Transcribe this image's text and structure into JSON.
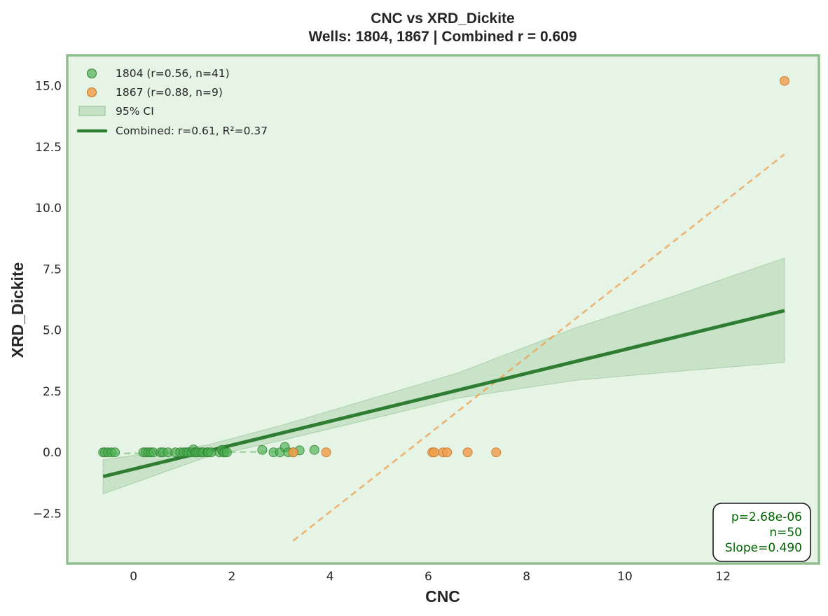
{
  "chart_data": {
    "type": "scatter",
    "title": "CNC vs XRD_Dickite",
    "subtitle": "Wells: 1804, 1867 | Combined r = 0.609",
    "xlabel": "CNC",
    "ylabel": "XRD_Dickite",
    "xlim": [
      -1.35,
      13.95
    ],
    "ylim": [
      -4.55,
      16.25
    ],
    "x_ticks": [
      0,
      2,
      4,
      6,
      8,
      10,
      12
    ],
    "y_ticks": [
      -2.5,
      0.0,
      2.5,
      5.0,
      7.5,
      10.0,
      12.5,
      15.0
    ],
    "x_tick_labels": [
      "0",
      "2",
      "4",
      "6",
      "8",
      "10",
      "12"
    ],
    "y_tick_labels": [
      "−2.5",
      "0.0",
      "2.5",
      "5.0",
      "7.5",
      "10.0",
      "12.5",
      "15.0"
    ],
    "grid": false,
    "legend_position": "upper-left",
    "colors": {
      "background": "#e6f4e6",
      "frame": "#8fbf8f",
      "series_1804": "#4caf50",
      "series_1804_edge": "#2e7d32",
      "series_1867": "#f0a050",
      "series_1867_edge": "#c07020",
      "combined_line": "#2e7d32",
      "ci_fill": "#a5cfa5",
      "stats_text": "#006400"
    },
    "series": [
      {
        "name": "1804",
        "legend": "1804 (r=0.56, n=41)",
        "marker": "circle",
        "points": [
          [
            -0.62,
            0
          ],
          [
            -0.58,
            0
          ],
          [
            -0.52,
            0
          ],
          [
            -0.45,
            0
          ],
          [
            -0.38,
            0
          ],
          [
            0.2,
            0
          ],
          [
            0.25,
            0
          ],
          [
            0.3,
            0
          ],
          [
            0.35,
            0
          ],
          [
            0.4,
            0
          ],
          [
            0.55,
            0
          ],
          [
            0.6,
            0
          ],
          [
            0.7,
            0
          ],
          [
            0.85,
            0
          ],
          [
            0.95,
            0
          ],
          [
            1.02,
            0
          ],
          [
            1.08,
            0
          ],
          [
            1.12,
            0
          ],
          [
            1.18,
            0
          ],
          [
            1.22,
            0.12
          ],
          [
            1.25,
            0
          ],
          [
            1.28,
            0
          ],
          [
            1.32,
            0
          ],
          [
            1.38,
            0
          ],
          [
            1.42,
            0
          ],
          [
            1.5,
            0
          ],
          [
            1.52,
            0
          ],
          [
            1.58,
            0
          ],
          [
            1.75,
            0
          ],
          [
            1.8,
            0.1
          ],
          [
            1.83,
            0
          ],
          [
            1.85,
            0
          ],
          [
            1.9,
            0
          ],
          [
            2.62,
            0.1
          ],
          [
            2.85,
            0
          ],
          [
            2.98,
            0
          ],
          [
            3.08,
            0.22
          ],
          [
            3.15,
            0
          ],
          [
            3.38,
            0.08
          ],
          [
            3.68,
            0.1
          ],
          [
            3.25,
            0
          ]
        ],
        "fit_line": {
          "x": [
            -0.62,
            3.25
          ],
          "y": [
            -0.06,
            0.04
          ],
          "style": "dashed"
        }
      },
      {
        "name": "1867",
        "legend": "1867 (r=0.88, n=9)",
        "marker": "circle",
        "points": [
          [
            3.25,
            0
          ],
          [
            3.92,
            0
          ],
          [
            6.08,
            0
          ],
          [
            6.12,
            0
          ],
          [
            6.3,
            0
          ],
          [
            6.38,
            0
          ],
          [
            6.8,
            0
          ],
          [
            7.38,
            0
          ],
          [
            13.25,
            15.2
          ]
        ],
        "fit_line": {
          "x": [
            3.25,
            13.25
          ],
          "y": [
            -3.62,
            12.2
          ],
          "style": "dashed"
        }
      }
    ],
    "combined_fit": {
      "legend": "Combined: r=0.61, R²=0.37",
      "x": [
        -0.62,
        13.25
      ],
      "y": [
        -0.99,
        5.8
      ]
    },
    "confidence_band": {
      "legend": "95% CI",
      "x": [
        -0.62,
        1.5,
        3,
        6.6,
        9,
        11,
        13.25
      ],
      "lower": [
        -1.7,
        -0.18,
        0.48,
        2.22,
        2.95,
        3.3,
        3.68
      ],
      "upper": [
        -0.3,
        0.3,
        1.1,
        3.25,
        5.1,
        6.4,
        7.95
      ]
    },
    "stats_box": {
      "lines": [
        "p=2.68e-06",
        "n=50",
        "Slope=0.490"
      ]
    }
  }
}
